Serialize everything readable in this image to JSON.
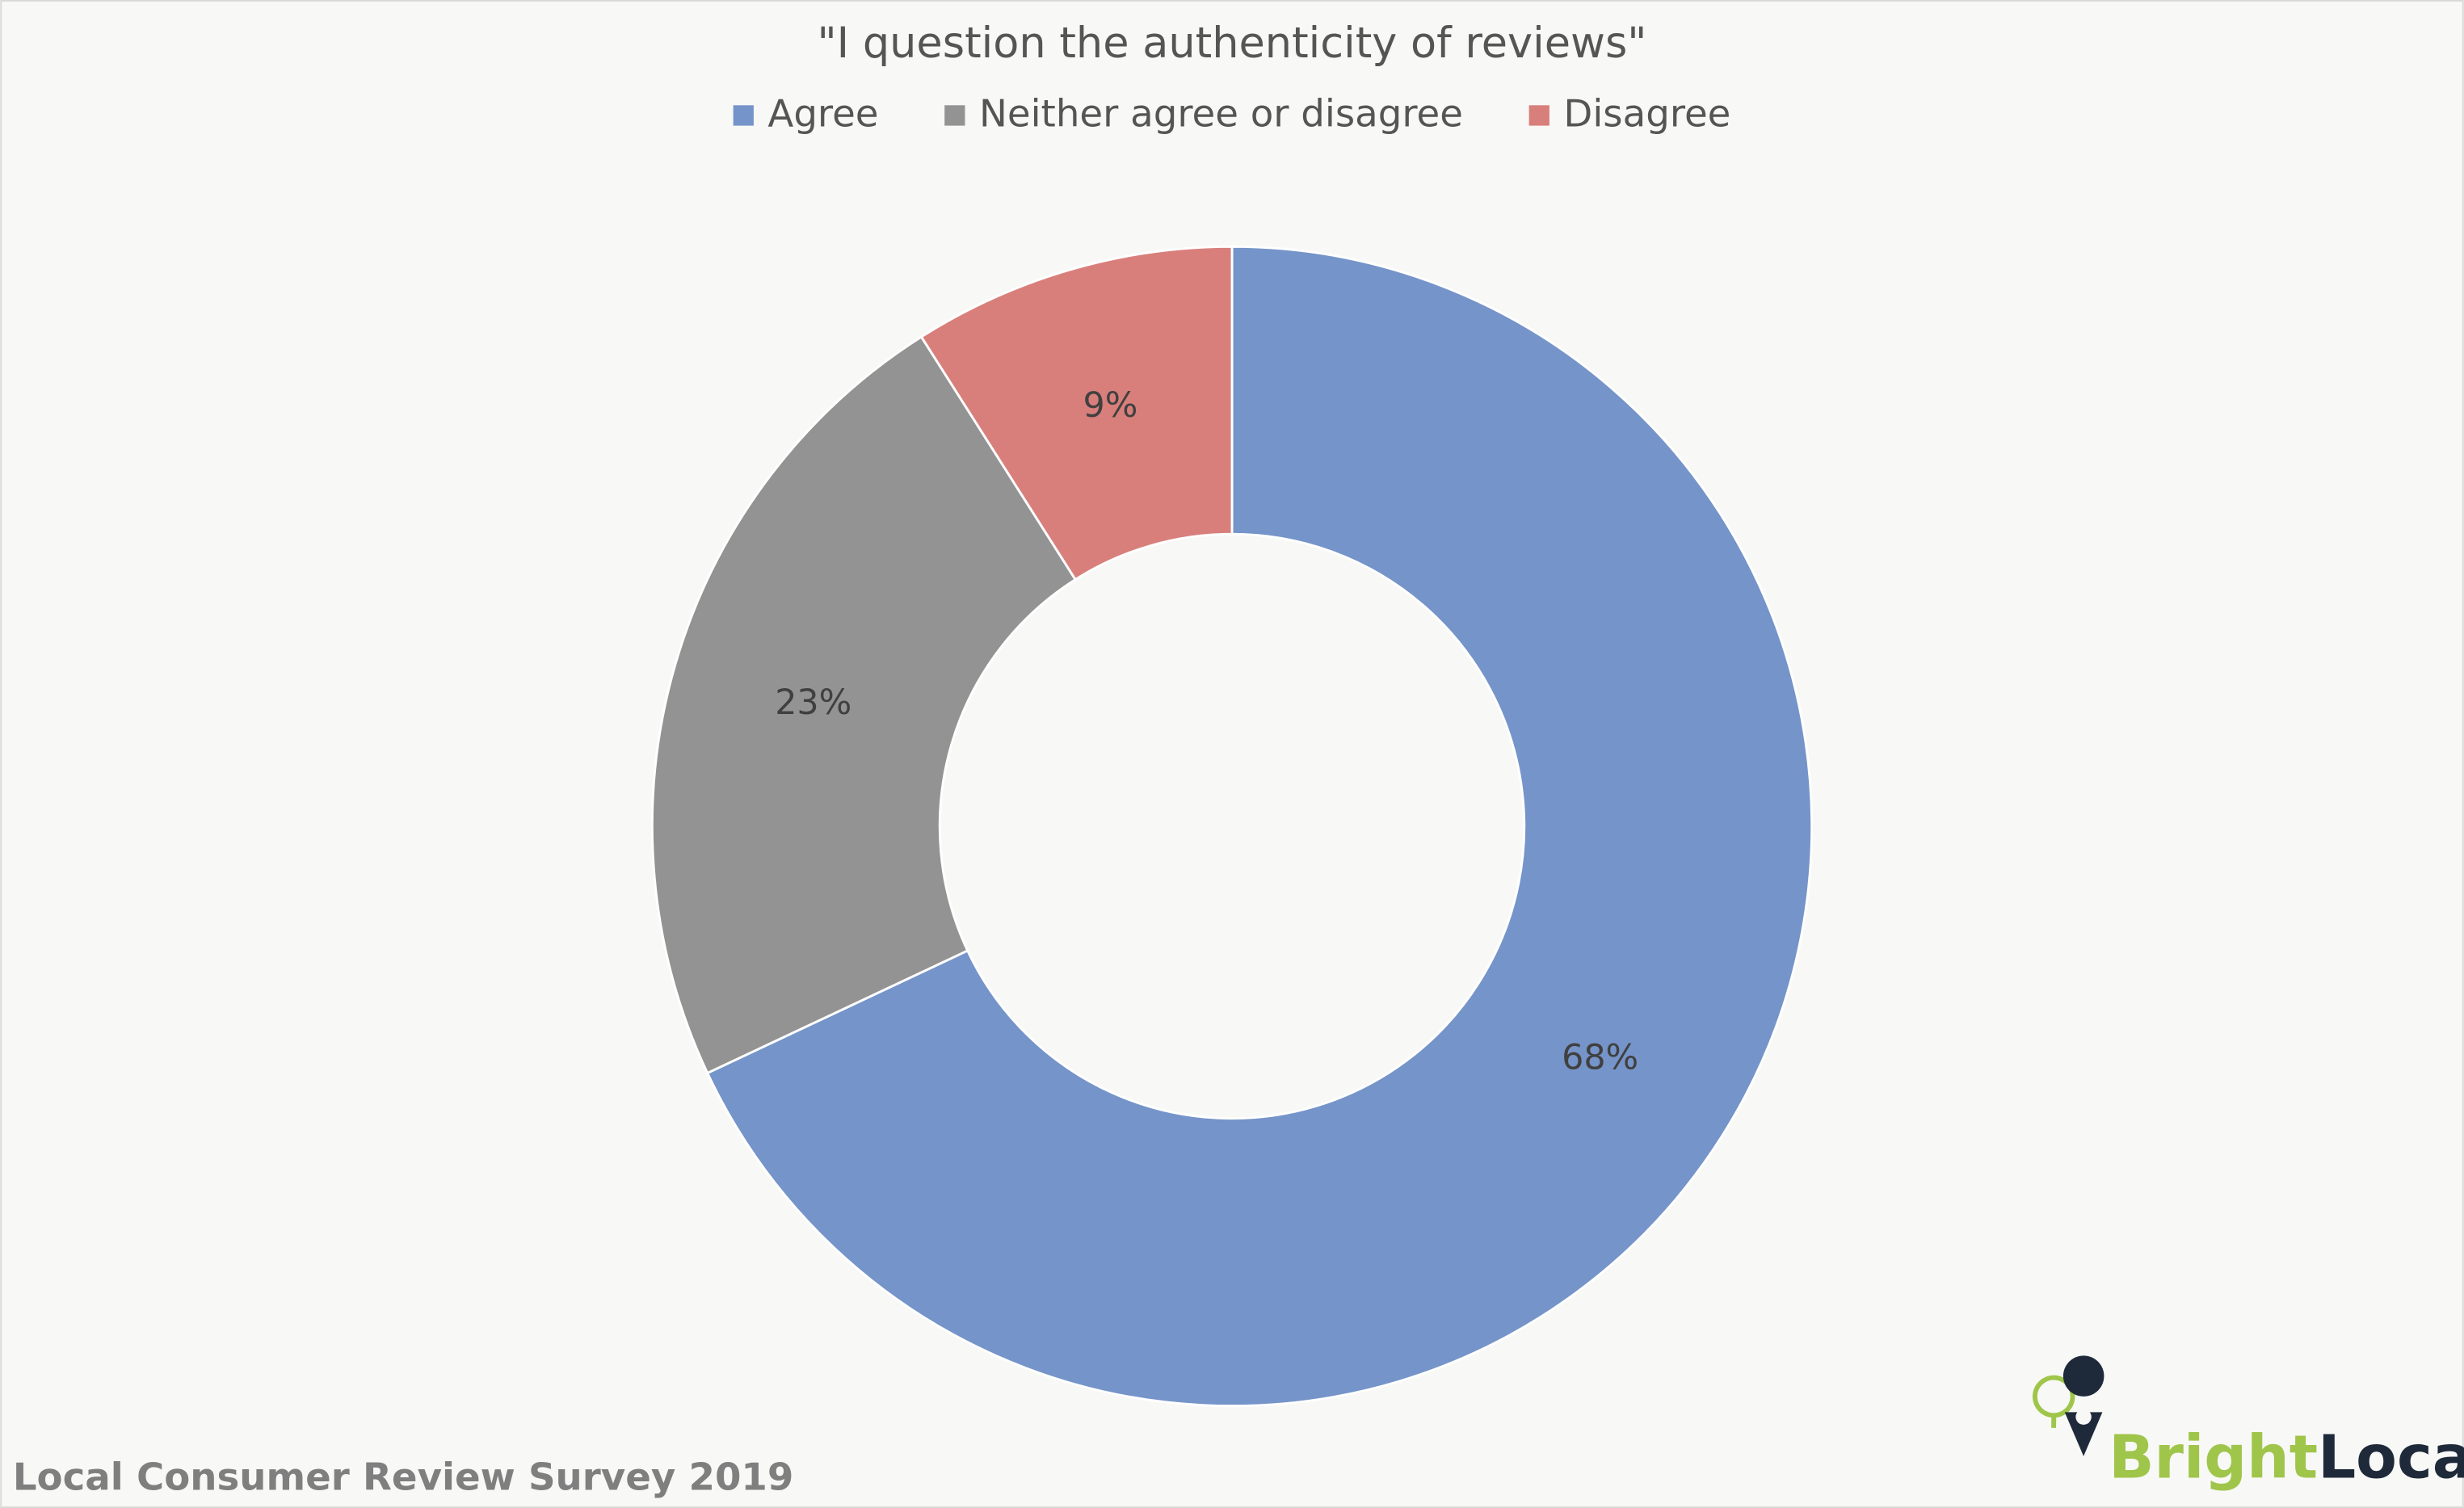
{
  "chart_data": {
    "type": "donut",
    "title": "\"I question the authenticity of reviews\"",
    "categories": [
      "Agree",
      "Neither agree or disagree",
      "Disagree"
    ],
    "values": [
      68,
      23,
      9
    ],
    "value_labels": [
      "68%",
      "23%",
      "9%"
    ],
    "colors": [
      "#7594c9",
      "#939393",
      "#d97f7b"
    ],
    "legend": "top"
  },
  "footer": "Local Consumer Review Survey 2019",
  "logo": {
    "first": "Bright",
    "second": "Local"
  }
}
